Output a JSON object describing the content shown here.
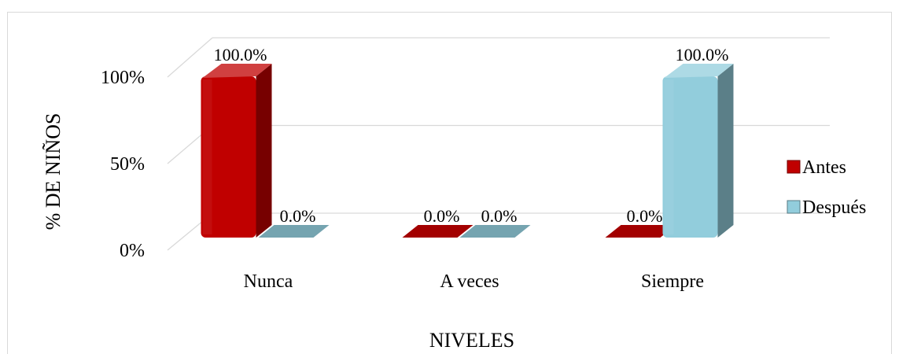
{
  "chart_data": {
    "type": "bar",
    "categories": [
      "Nunca",
      "A veces",
      "Siempre"
    ],
    "series": [
      {
        "name": "Antes",
        "values": [
          100.0,
          0.0,
          0.0
        ],
        "color": "#c00000"
      },
      {
        "name": "Después",
        "values": [
          0.0,
          0.0,
          100.0
        ],
        "color": "#92cddc"
      }
    ],
    "data_labels": [
      [
        "100.0%",
        "0.0%",
        "0.0%"
      ],
      [
        "0.0%",
        "0.0%",
        "100.0%"
      ]
    ],
    "ylim": [
      0,
      100
    ],
    "yticks": [
      0,
      50,
      100
    ],
    "ytick_labels": [
      "0%",
      "50%",
      "100%"
    ],
    "xlabel": "NIVELES",
    "ylabel": "% DE NIÑOS",
    "legend_position": "right",
    "grid": true,
    "style": "3d-column"
  }
}
